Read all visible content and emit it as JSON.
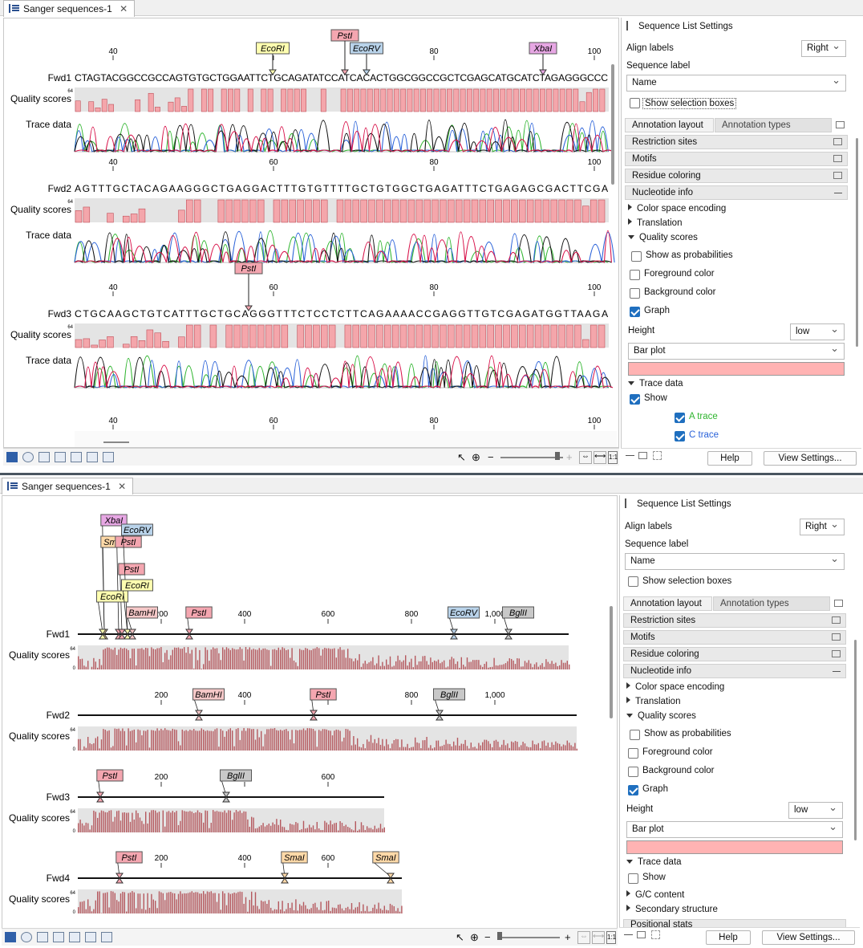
{
  "tab_title": "Sanger sequences-1",
  "tab_close": "✕",
  "top": {
    "ruler": [
      "40",
      "60",
      "80",
      "100"
    ],
    "rows": [
      {
        "name": "Fwd1",
        "seq": "CTAGTACGGCCGCCAGTGTGCTGGAATTCTGCAGATATCCATCACACTGGCGGCCGCTCGAGCATGCATCTAGAGGGCCC",
        "qlabel": "Quality scores",
        "tlabel": "Trace data",
        "sites": [
          {
            "label": "EcoRI",
            "color": "#ffffb0"
          },
          {
            "label": "PstI",
            "color": "#f4a6b0"
          },
          {
            "label": "EcoRV",
            "color": "#b9d3ea"
          },
          {
            "label": "XbaI",
            "color": "#e7a7e4"
          }
        ]
      },
      {
        "name": "Fwd2",
        "seq": "AGTTTGCTACAGAAGGGCTGAGGACTTTGTGTTTTGCTGTGGCTGAGATTTCTGAGAGCGACTTCGA",
        "qlabel": "Quality scores",
        "tlabel": "Trace data",
        "sites": []
      },
      {
        "name": "Fwd3",
        "seq": "CTGCAAGCTGTCATTTGCTGCAGGGTTTCTCCTCTTCAGAAAACCGAGGTTGTCGAGATGGTTAAGA",
        "qlabel": "Quality scores",
        "tlabel": "Trace data",
        "sites": [
          {
            "label": "PstI",
            "color": "#f4a6b0"
          }
        ]
      }
    ],
    "qaxis": "64"
  },
  "bottom": {
    "rows": [
      {
        "name": "Fwd1",
        "qlabel": "Quality scores",
        "ruler": [
          "200",
          "400",
          "600",
          "800",
          "1,000"
        ],
        "sites": [
          {
            "label": "XbaI",
            "color": "#e7a7e4"
          },
          {
            "label": "SmaI",
            "color": "#ffd9a8"
          },
          {
            "label": "PstI",
            "color": "#f4a6b0"
          },
          {
            "label": "PstI",
            "color": "#f4a6b0"
          },
          {
            "label": "EcoRV",
            "color": "#b9d3ea"
          },
          {
            "label": "EcoRI",
            "color": "#ffffb0"
          },
          {
            "label": "EcoRI",
            "color": "#ffffb0"
          },
          {
            "label": "BamHI",
            "color": "#f6c8c8"
          },
          {
            "label": "PstI",
            "color": "#f4a6b0"
          },
          {
            "label": "EcoRV",
            "color": "#b9d3ea"
          },
          {
            "label": "BglII",
            "color": "#c8c8c8"
          }
        ]
      },
      {
        "name": "Fwd2",
        "qlabel": "Quality scores",
        "ruler": [
          "200",
          "400",
          "600",
          "800",
          "1,000"
        ],
        "sites": [
          {
            "label": "BamHI",
            "color": "#f6c8c8"
          },
          {
            "label": "PstI",
            "color": "#f4a6b0"
          },
          {
            "label": "BglII",
            "color": "#c8c8c8"
          }
        ]
      },
      {
        "name": "Fwd3",
        "qlabel": "Quality scores",
        "ruler": [
          "200",
          "400",
          "600"
        ],
        "sites": [
          {
            "label": "PstI",
            "color": "#f4a6b0"
          },
          {
            "label": "BglII",
            "color": "#c8c8c8"
          }
        ]
      },
      {
        "name": "Fwd4",
        "qlabel": "Quality scores",
        "ruler": [
          "200",
          "400",
          "600"
        ],
        "sites": [
          {
            "label": "PstI",
            "color": "#f4a6b0"
          },
          {
            "label": "SmaI",
            "color": "#ffd9a8"
          },
          {
            "label": "SmaI",
            "color": "#ffd9a8"
          }
        ]
      }
    ],
    "qaxis": "64",
    "qzero": "0"
  },
  "settings_top": {
    "title": "Sequence List Settings",
    "align_labels": "Align labels",
    "align_value": "Right",
    "seq_label": "Sequence label",
    "seq_label_value": "Name",
    "show_sel": "Show selection boxes",
    "tab_layout": "Annotation layout",
    "tab_types": "Annotation types",
    "restriction": "Restriction sites",
    "motifs": "Motifs",
    "residue": "Residue coloring",
    "nucleotide": "Nucleotide info",
    "color_space": "Color space encoding",
    "translation": "Translation",
    "quality": "Quality scores",
    "show_prob": "Show as probabilities",
    "fg": "Foreground color",
    "bg": "Background color",
    "graph": "Graph",
    "height": "Height",
    "height_value": "low",
    "plot": "Bar plot",
    "plot_color": "#ffb3b3",
    "trace": "Trace data",
    "show": "Show",
    "a_trace": "A trace",
    "c_trace": "C trace",
    "help": "Help",
    "view_settings": "View Settings..."
  },
  "settings_bottom": {
    "title": "Sequence List Settings",
    "align_labels": "Align labels",
    "align_value": "Right",
    "seq_label": "Sequence label",
    "seq_label_value": "Name",
    "show_sel": "Show selection boxes",
    "tab_layout": "Annotation layout",
    "tab_types": "Annotation types",
    "restriction": "Restriction sites",
    "motifs": "Motifs",
    "residue": "Residue coloring",
    "nucleotide": "Nucleotide info",
    "color_space": "Color space encoding",
    "translation": "Translation",
    "quality": "Quality scores",
    "show_prob": "Show as probabilities",
    "fg": "Foreground color",
    "bg": "Background color",
    "graph": "Graph",
    "height": "Height",
    "height_value": "low",
    "plot": "Bar plot",
    "plot_color": "#ffb3b3",
    "trace": "Trace data",
    "show": "Show",
    "gc": "G/C content",
    "secondary": "Secondary structure",
    "positional": "Positional stats",
    "help": "Help",
    "view_settings": "View Settings..."
  },
  "colors": {
    "bar": "#f4a6ab",
    "barstroke": "#c0505a",
    "qbg": "#e4e4e4",
    "A": "#2fb52f",
    "C": "#2a62d9",
    "G": "#111111",
    "T": "#d8124a",
    "densebar": "#b5585e"
  }
}
